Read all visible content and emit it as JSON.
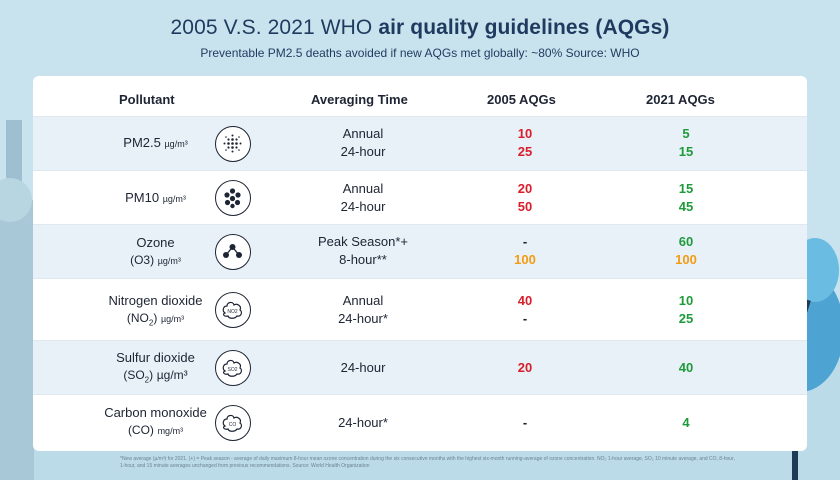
{
  "header": {
    "title_prefix": "2005 V.S. 2021 WHO",
    "title_bold": "air quality guidelines (AQGs)",
    "subtitle": "Preventable PM2.5 deaths avoided if new AQGs met globally: ~80% Source: WHO"
  },
  "table": {
    "columns": [
      "Pollutant",
      "Averaging Time",
      "2005 AQGs",
      "2021 AQGs"
    ],
    "rows": [
      {
        "pollutant": "PM2.5",
        "unit": "µg/m³",
        "icon": "particles-icon",
        "averaging": [
          "Annual",
          "24-hour"
        ],
        "aqg_2005": [
          "10",
          "25"
        ],
        "aqg_2021": [
          "5",
          "15"
        ]
      },
      {
        "pollutant": "PM10",
        "unit": "µg/m³",
        "icon": "dots-cluster-icon",
        "averaging": [
          "Annual",
          "24-hour"
        ],
        "aqg_2005": [
          "20",
          "50"
        ],
        "aqg_2021": [
          "15",
          "45"
        ]
      },
      {
        "pollutant": "Ozone",
        "formula": "(O3)",
        "unit": "µg/m³",
        "icon": "molecule-icon",
        "averaging": [
          "Peak Season*+",
          "8-hour**"
        ],
        "aqg_2005": [
          "-",
          "100"
        ],
        "aqg_2021": [
          "60",
          "100"
        ]
      },
      {
        "pollutant": "Nitrogen dioxide",
        "formula_pre": "(NO",
        "formula_sub": "2",
        "formula_post": ")",
        "unit": "µg/m³",
        "icon": "no2-icon",
        "averaging": [
          "Annual",
          "24-hour*"
        ],
        "aqg_2005": [
          "40",
          "-"
        ],
        "aqg_2021": [
          "10",
          "25"
        ]
      },
      {
        "pollutant": "Sulfur dioxide",
        "formula_pre": "(SO",
        "formula_sub": "2",
        "formula_post": ")",
        "unit": "µg/m³",
        "icon": "so2-icon",
        "averaging": [
          "24-hour"
        ],
        "aqg_2005": [
          "20"
        ],
        "aqg_2021": [
          "40"
        ]
      },
      {
        "pollutant": "Carbon monoxide",
        "formula": "(CO)",
        "unit": "mg/m³",
        "icon": "co-icon",
        "averaging": [
          "24-hour*"
        ],
        "aqg_2005": [
          "-"
        ],
        "aqg_2021": [
          "4"
        ]
      }
    ]
  },
  "footnote": "*New average (µ/m³) for 2021. (+) = Peak season - average of daily maximum 8-hour mean ozone concentration during the six consecutive months with the highest six-month running-average of ozone concentration. NO₂ 1-hour average, SO₂ 10 minute average, and CO, 8-hour, 1-hour, and 15 minute averages unchanged from previous recommendations. Source: World Health Organization",
  "colors": {
    "old_value": "#d81e2a",
    "new_value": "#1f9a3b",
    "unchanged_value": "#f39c12",
    "background": "#c9e3ee"
  }
}
